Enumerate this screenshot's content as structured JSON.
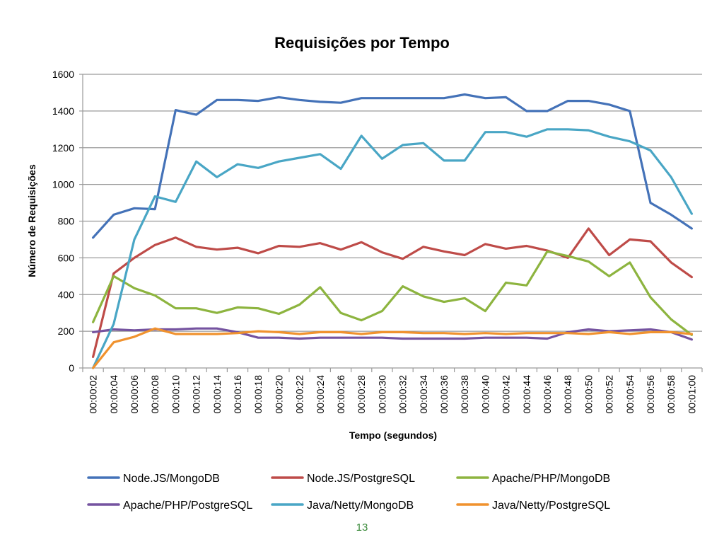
{
  "page": {
    "number": "13"
  },
  "colors": {
    "grid": "#9a9a9a",
    "axis": "#9a9a9a",
    "text": "#000000",
    "page_number": "#3a8a3a"
  },
  "chart_data": {
    "type": "line",
    "title": "Requisições por Tempo",
    "xlabel": "Tempo (segundos)",
    "ylabel": "Número de Requisições",
    "ylim": [
      0,
      1600
    ],
    "yticks": [
      0,
      200,
      400,
      600,
      800,
      1000,
      1200,
      1400,
      1600
    ],
    "grid": true,
    "legend_position": "bottom",
    "categories": [
      "00:00:02",
      "00:00:04",
      "00:00:06",
      "00:00:08",
      "00:00:10",
      "00:00:12",
      "00:00:14",
      "00:00:16",
      "00:00:18",
      "00:00:20",
      "00:00:22",
      "00:00:24",
      "00:00:26",
      "00:00:28",
      "00:00:30",
      "00:00:32",
      "00:00:34",
      "00:00:36",
      "00:00:38",
      "00:00:40",
      "00:00:42",
      "00:00:44",
      "00:00:46",
      "00:00:48",
      "00:00:50",
      "00:00:52",
      "00:00:54",
      "00:00:56",
      "00:00:58",
      "00:01:00"
    ],
    "series": [
      {
        "name": "Node.JS/MongoDB",
        "color": "#4472b8",
        "values": [
          710,
          835,
          870,
          865,
          1405,
          1380,
          1460,
          1460,
          1455,
          1475,
          1460,
          1450,
          1445,
          1470,
          1470,
          1470,
          1470,
          1470,
          1490,
          1470,
          1475,
          1400,
          1400,
          1455,
          1455,
          1435,
          1400,
          900,
          835,
          760
        ]
      },
      {
        "name": "Node.JS/PostgreSQL",
        "color": "#be4b48",
        "values": [
          60,
          515,
          600,
          670,
          710,
          660,
          645,
          655,
          625,
          665,
          660,
          680,
          645,
          685,
          630,
          595,
          660,
          635,
          615,
          675,
          650,
          665,
          640,
          600,
          760,
          615,
          700,
          690,
          575,
          495
        ]
      },
      {
        "name": "Apache/PHP/MongoDB",
        "color": "#8db43f",
        "values": [
          250,
          500,
          435,
          395,
          325,
          325,
          300,
          330,
          325,
          295,
          345,
          440,
          300,
          260,
          310,
          445,
          390,
          360,
          380,
          310,
          465,
          450,
          635,
          610,
          580,
          500,
          575,
          385,
          265,
          180
        ]
      },
      {
        "name": "Apache/PHP/PostgreSQL",
        "color": "#7553a0",
        "values": [
          195,
          210,
          205,
          210,
          210,
          215,
          215,
          195,
          165,
          165,
          160,
          165,
          165,
          165,
          165,
          160,
          160,
          160,
          160,
          165,
          165,
          165,
          160,
          195,
          210,
          200,
          205,
          210,
          195,
          155
        ]
      },
      {
        "name": "Java/Netty/MongoDB",
        "color": "#49a6c5",
        "values": [
          0,
          240,
          700,
          935,
          905,
          1125,
          1040,
          1110,
          1090,
          1125,
          1145,
          1165,
          1085,
          1265,
          1140,
          1215,
          1225,
          1130,
          1130,
          1285,
          1285,
          1260,
          1300,
          1300,
          1295,
          1260,
          1235,
          1185,
          1040,
          840
        ]
      },
      {
        "name": "Java/Netty/PostgreSQL",
        "color": "#f0922e",
        "values": [
          0,
          140,
          170,
          215,
          185,
          185,
          185,
          190,
          200,
          195,
          185,
          195,
          195,
          185,
          195,
          195,
          190,
          190,
          185,
          190,
          185,
          190,
          190,
          190,
          185,
          195,
          185,
          195,
          195,
          185
        ]
      }
    ]
  }
}
